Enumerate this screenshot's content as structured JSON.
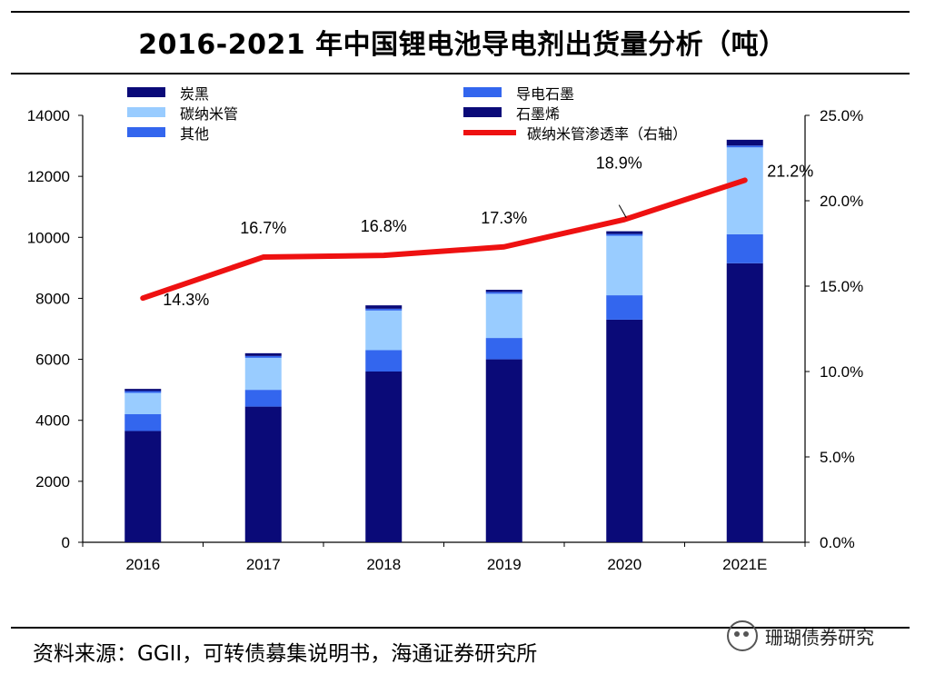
{
  "header": {
    "title": "2016-2021 年中国锂电池导电剂出货量分析（吨）"
  },
  "footer": {
    "source": "资料来源：GGII，可转债募集说明书，海通证券研究所",
    "watermark": "珊瑚债券研究"
  },
  "colors": {
    "carbon_black": "#0a0a78",
    "conductive_graphite": "#3366ee",
    "cnt": "#99ccff",
    "graphene": "#0a0a78",
    "other": "#3366ee",
    "line": "#ee1111"
  },
  "chart_data": {
    "type": "bar",
    "stacked": true,
    "title": "2016-2021 年中国锂电池导电剂出货量分析（吨）",
    "categories": [
      "2016",
      "2017",
      "2018",
      "2019",
      "2020",
      "2021E"
    ],
    "ylim": [
      0,
      14000
    ],
    "y_ticks": [
      "0",
      "2000",
      "4000",
      "6000",
      "8000",
      "10000",
      "12000",
      "14000"
    ],
    "y2lim": [
      0,
      25
    ],
    "y2_ticks": [
      "0.0%",
      "5.0%",
      "10.0%",
      "15.0%",
      "20.0%",
      "25.0%"
    ],
    "series": [
      {
        "name": "炭黑",
        "key": "carbon_black",
        "values": [
          3650,
          4450,
          5600,
          6000,
          7300,
          9150
        ]
      },
      {
        "name": "其他",
        "key": "other",
        "values": [
          550,
          550,
          700,
          700,
          800,
          950
        ]
      },
      {
        "name": "碳纳米管",
        "key": "cnt",
        "values": [
          700,
          1050,
          1300,
          1450,
          1950,
          2850
        ]
      },
      {
        "name": "导电石墨",
        "key": "conductive_graphite",
        "values": [
          60,
          60,
          60,
          60,
          60,
          60
        ]
      },
      {
        "name": "石墨烯",
        "key": "graphene",
        "values": [
          70,
          90,
          110,
          70,
          90,
          190
        ]
      }
    ],
    "line": {
      "name": "碳纳米管渗透率（右轴）",
      "axis": "right",
      "values": [
        14.3,
        16.7,
        16.8,
        17.3,
        18.9,
        21.2
      ],
      "labels": [
        "14.3%",
        "16.7%",
        "16.8%",
        "17.3%",
        "18.9%",
        "21.2%"
      ]
    },
    "legend": [
      {
        "name": "炭黑",
        "key": "carbon_black",
        "type": "bar"
      },
      {
        "name": "导电石墨",
        "key": "conductive_graphite",
        "type": "bar"
      },
      {
        "name": "碳纳米管",
        "key": "cnt",
        "type": "bar"
      },
      {
        "name": "石墨烯",
        "key": "graphene",
        "type": "bar"
      },
      {
        "name": "其他",
        "key": "other",
        "type": "bar"
      },
      {
        "name": "碳纳米管渗透率（右轴）",
        "key": "line",
        "type": "line"
      }
    ],
    "legend_position": "top"
  }
}
